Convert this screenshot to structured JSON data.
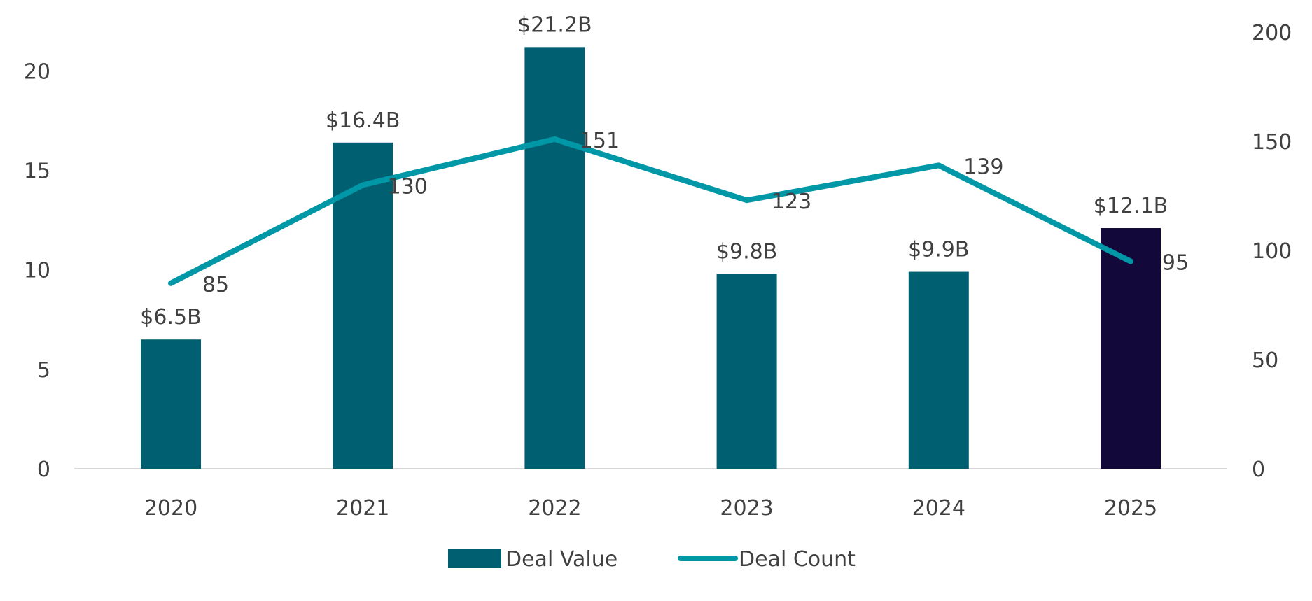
{
  "chart_data": {
    "type": "bar",
    "title": "",
    "xlabel": "",
    "ylabel": "",
    "categories": [
      "2020",
      "2021",
      "2022",
      "2023",
      "2024",
      "2025"
    ],
    "series": [
      {
        "name": "Deal Value",
        "type": "bar",
        "axis": "left",
        "values": [
          6.5,
          16.4,
          21.2,
          9.8,
          9.9,
          12.1
        ],
        "labels": [
          "$6.5B",
          "$16.4B",
          "$21.2B",
          "$9.8B",
          "$9.9B",
          "$12.1B"
        ],
        "color": "#006072",
        "highlight_color": "#12083A",
        "highlight_index": 5
      },
      {
        "name": "Deal Count",
        "type": "line",
        "axis": "right",
        "values": [
          85,
          130,
          151,
          123,
          139,
          95
        ],
        "labels": [
          "85",
          "130",
          "151",
          "123",
          "139",
          "95"
        ],
        "color": "#0097A7"
      }
    ],
    "y_left": {
      "ticks": [
        0,
        5,
        10,
        15,
        20
      ],
      "tick_labels": [
        "0",
        "5",
        "10",
        "15",
        "20"
      ],
      "ylim": [
        0,
        21.95
      ]
    },
    "y_right": {
      "ticks": [
        0,
        50,
        100,
        150,
        200
      ],
      "tick_labels": [
        "0",
        "50",
        "100",
        "150",
        "200"
      ],
      "ylim": [
        0,
        200
      ]
    },
    "grid": false,
    "legend": {
      "placement": "bottom",
      "items": [
        "Deal Value",
        "Deal Count"
      ]
    }
  }
}
